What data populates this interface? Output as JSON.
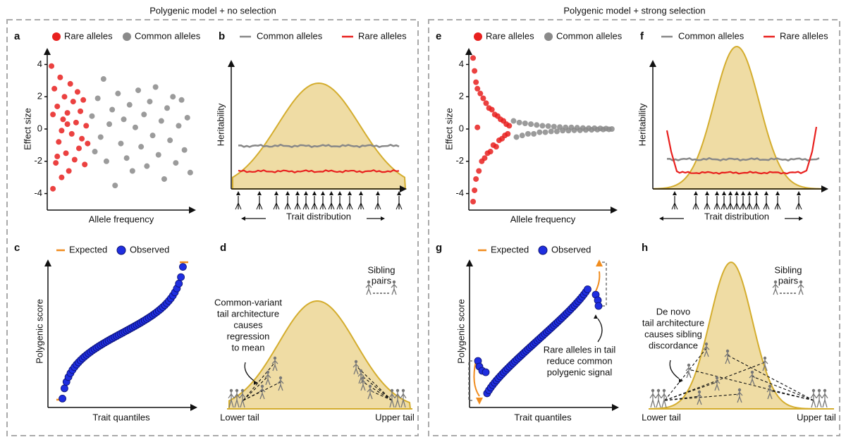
{
  "sections": [
    {
      "title": "Polygenic model + no selection",
      "scatter": {
        "label": "a",
        "legend": [
          "Rare alleles",
          "Common alleles"
        ],
        "y_label": "Effect size",
        "x_label": "Allele frequency",
        "ylim": [
          -4.5,
          4.5
        ],
        "yticks": [
          -4,
          -2,
          0,
          2,
          4
        ],
        "xlim": [
          0,
          1
        ],
        "rare": {
          "color": "#e8201e",
          "x": [
            0.01,
            0.02,
            0.03,
            0.04,
            0.05,
            0.06,
            0.07,
            0.08,
            0.09,
            0.1,
            0.11,
            0.12,
            0.13,
            0.14,
            0.15,
            0.16,
            0.17,
            0.18,
            0.19,
            0.2,
            0.21,
            0.22,
            0.23,
            0.24,
            0.25,
            0.26,
            0.02,
            0.05,
            0.08,
            0.12
          ],
          "y": [
            3.9,
            -3.7,
            2.5,
            -2.1,
            1.4,
            -0.8,
            3.2,
            -3.0,
            0.6,
            2.0,
            -1.5,
            1.0,
            -2.6,
            2.8,
            -0.3,
            1.7,
            -1.9,
            0.4,
            2.3,
            -1.2,
            1.1,
            -0.6,
            1.8,
            -2.2,
            0.2,
            -0.9,
            0.9,
            -1.7,
            -0.1,
            0.3
          ]
        },
        "common": {
          "color": "#8a8a8a",
          "x": [
            0.29,
            0.31,
            0.33,
            0.35,
            0.37,
            0.39,
            0.41,
            0.43,
            0.45,
            0.47,
            0.49,
            0.51,
            0.53,
            0.55,
            0.57,
            0.59,
            0.61,
            0.63,
            0.65,
            0.67,
            0.69,
            0.71,
            0.73,
            0.75,
            0.77,
            0.79,
            0.81,
            0.83,
            0.85,
            0.87,
            0.89,
            0.91,
            0.93,
            0.95,
            0.97
          ],
          "y": [
            0.8,
            -1.4,
            1.9,
            -0.5,
            3.1,
            -2.0,
            0.3,
            1.2,
            -3.5,
            2.2,
            -0.9,
            0.6,
            -1.8,
            1.5,
            -2.6,
            0.1,
            2.4,
            -1.1,
            0.9,
            -2.3,
            1.7,
            -0.4,
            2.6,
            -1.6,
            0.5,
            -3.1,
            1.3,
            -0.7,
            2.0,
            -2.1,
            0.2,
            1.8,
            -1.3,
            0.7,
            -2.7
          ]
        }
      },
      "heritability": {
        "label": "b",
        "legend": [
          "Common alleles",
          "Rare alleles"
        ],
        "y_label": "Heritability",
        "x_label": "Trait distribution"
      },
      "scores": {
        "label": "c",
        "legend": [
          "Expected",
          "Observed"
        ],
        "y_label": "Polygenic score",
        "x_label": "Trait quantiles"
      },
      "siblings": {
        "label": "d",
        "inset": [
          "Sibling",
          "pairs"
        ],
        "annotation": [
          "Common-variant",
          "tail architecture",
          "causes",
          "regression",
          "to mean"
        ],
        "lower": "Lower tail",
        "upper": "Upper tail"
      }
    },
    {
      "title": "Polygenic model + strong selection",
      "scatter": {
        "label": "e",
        "legend": [
          "Rare alleles",
          "Common alleles"
        ],
        "y_label": "Effect size",
        "x_label": "Allele frequency",
        "ylim": [
          -4.5,
          4.5
        ],
        "yticks": [
          -4,
          -2,
          0,
          2,
          4
        ],
        "xlim": [
          0,
          1
        ],
        "rare": {
          "color": "#e8201e",
          "x": [
            0.01,
            0.01,
            0.02,
            0.02,
            0.03,
            0.03,
            0.04,
            0.05,
            0.06,
            0.07,
            0.08,
            0.09,
            0.1,
            0.11,
            0.12,
            0.13,
            0.14,
            0.15,
            0.16,
            0.17,
            0.18,
            0.19,
            0.2,
            0.21,
            0.22,
            0.23,
            0.24,
            0.25,
            0.26,
            0.04
          ],
          "y": [
            4.4,
            -4.5,
            3.6,
            -3.8,
            2.9,
            -3.1,
            2.5,
            -2.6,
            2.2,
            -2.0,
            1.9,
            -1.8,
            1.6,
            -1.5,
            1.3,
            -1.4,
            1.2,
            -1.0,
            0.9,
            -1.1,
            0.8,
            -0.7,
            0.6,
            -0.6,
            0.5,
            -0.4,
            0.3,
            -0.3,
            0.2,
            0.1
          ]
        },
        "common": {
          "color": "#8a8a8a",
          "x": [
            0.29,
            0.31,
            0.33,
            0.35,
            0.37,
            0.39,
            0.41,
            0.43,
            0.45,
            0.47,
            0.49,
            0.51,
            0.53,
            0.55,
            0.57,
            0.59,
            0.61,
            0.63,
            0.65,
            0.67,
            0.69,
            0.71,
            0.73,
            0.75,
            0.77,
            0.79,
            0.81,
            0.83,
            0.85,
            0.87,
            0.89,
            0.91,
            0.93,
            0.95,
            0.97
          ],
          "y": [
            0.5,
            -0.5,
            0.4,
            -0.4,
            0.35,
            -0.3,
            0.3,
            -0.3,
            0.25,
            -0.2,
            0.2,
            -0.2,
            0.18,
            -0.15,
            0.15,
            -0.15,
            0.12,
            -0.1,
            0.1,
            -0.1,
            0.1,
            -0.08,
            0.08,
            -0.08,
            0.06,
            -0.06,
            0.05,
            -0.05,
            0.05,
            -0.04,
            0.04,
            -0.03,
            0.03,
            -0.02,
            0.0
          ]
        }
      },
      "heritability": {
        "label": "f",
        "legend": [
          "Common alleles",
          "Rare alleles"
        ],
        "y_label": "Heritability",
        "x_label": "Trait distribution"
      },
      "scores": {
        "label": "g",
        "legend": [
          "Expected",
          "Observed"
        ],
        "y_label": "Polygenic score",
        "x_label": "Trait quantiles",
        "annotation": [
          "Rare alleles in tail",
          "reduce common",
          "polygenic signal"
        ]
      },
      "siblings": {
        "label": "h",
        "inset": [
          "Sibling",
          "pairs"
        ],
        "annotation": [
          "De novo",
          "tail architecture",
          "causes sibling",
          "discordance"
        ],
        "lower": "Lower tail",
        "upper": "Upper tail"
      }
    }
  ]
}
